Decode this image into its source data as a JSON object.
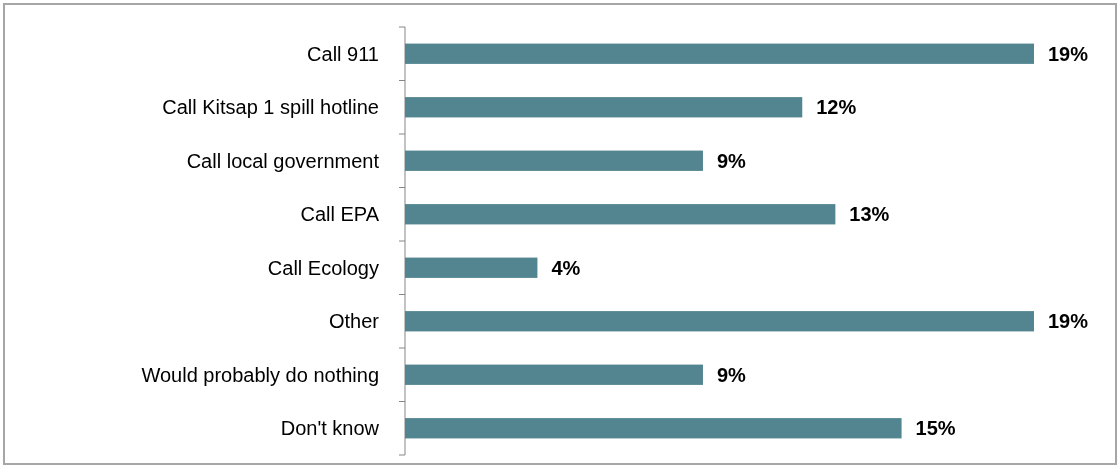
{
  "chart_data": {
    "type": "bar",
    "orientation": "horizontal",
    "categories": [
      "Call 911",
      "Call Kitsap 1  spill hotline",
      "Call local government",
      "Call EPA",
      "Call Ecology",
      "Other",
      "Would probably do nothing",
      "Don't know"
    ],
    "values": [
      19,
      12,
      9,
      13,
      4,
      19,
      9,
      15
    ],
    "value_labels": [
      "19%",
      "12%",
      "9%",
      "13%",
      "4%",
      "19%",
      "9%",
      "15%"
    ],
    "color": "#538591"
  }
}
